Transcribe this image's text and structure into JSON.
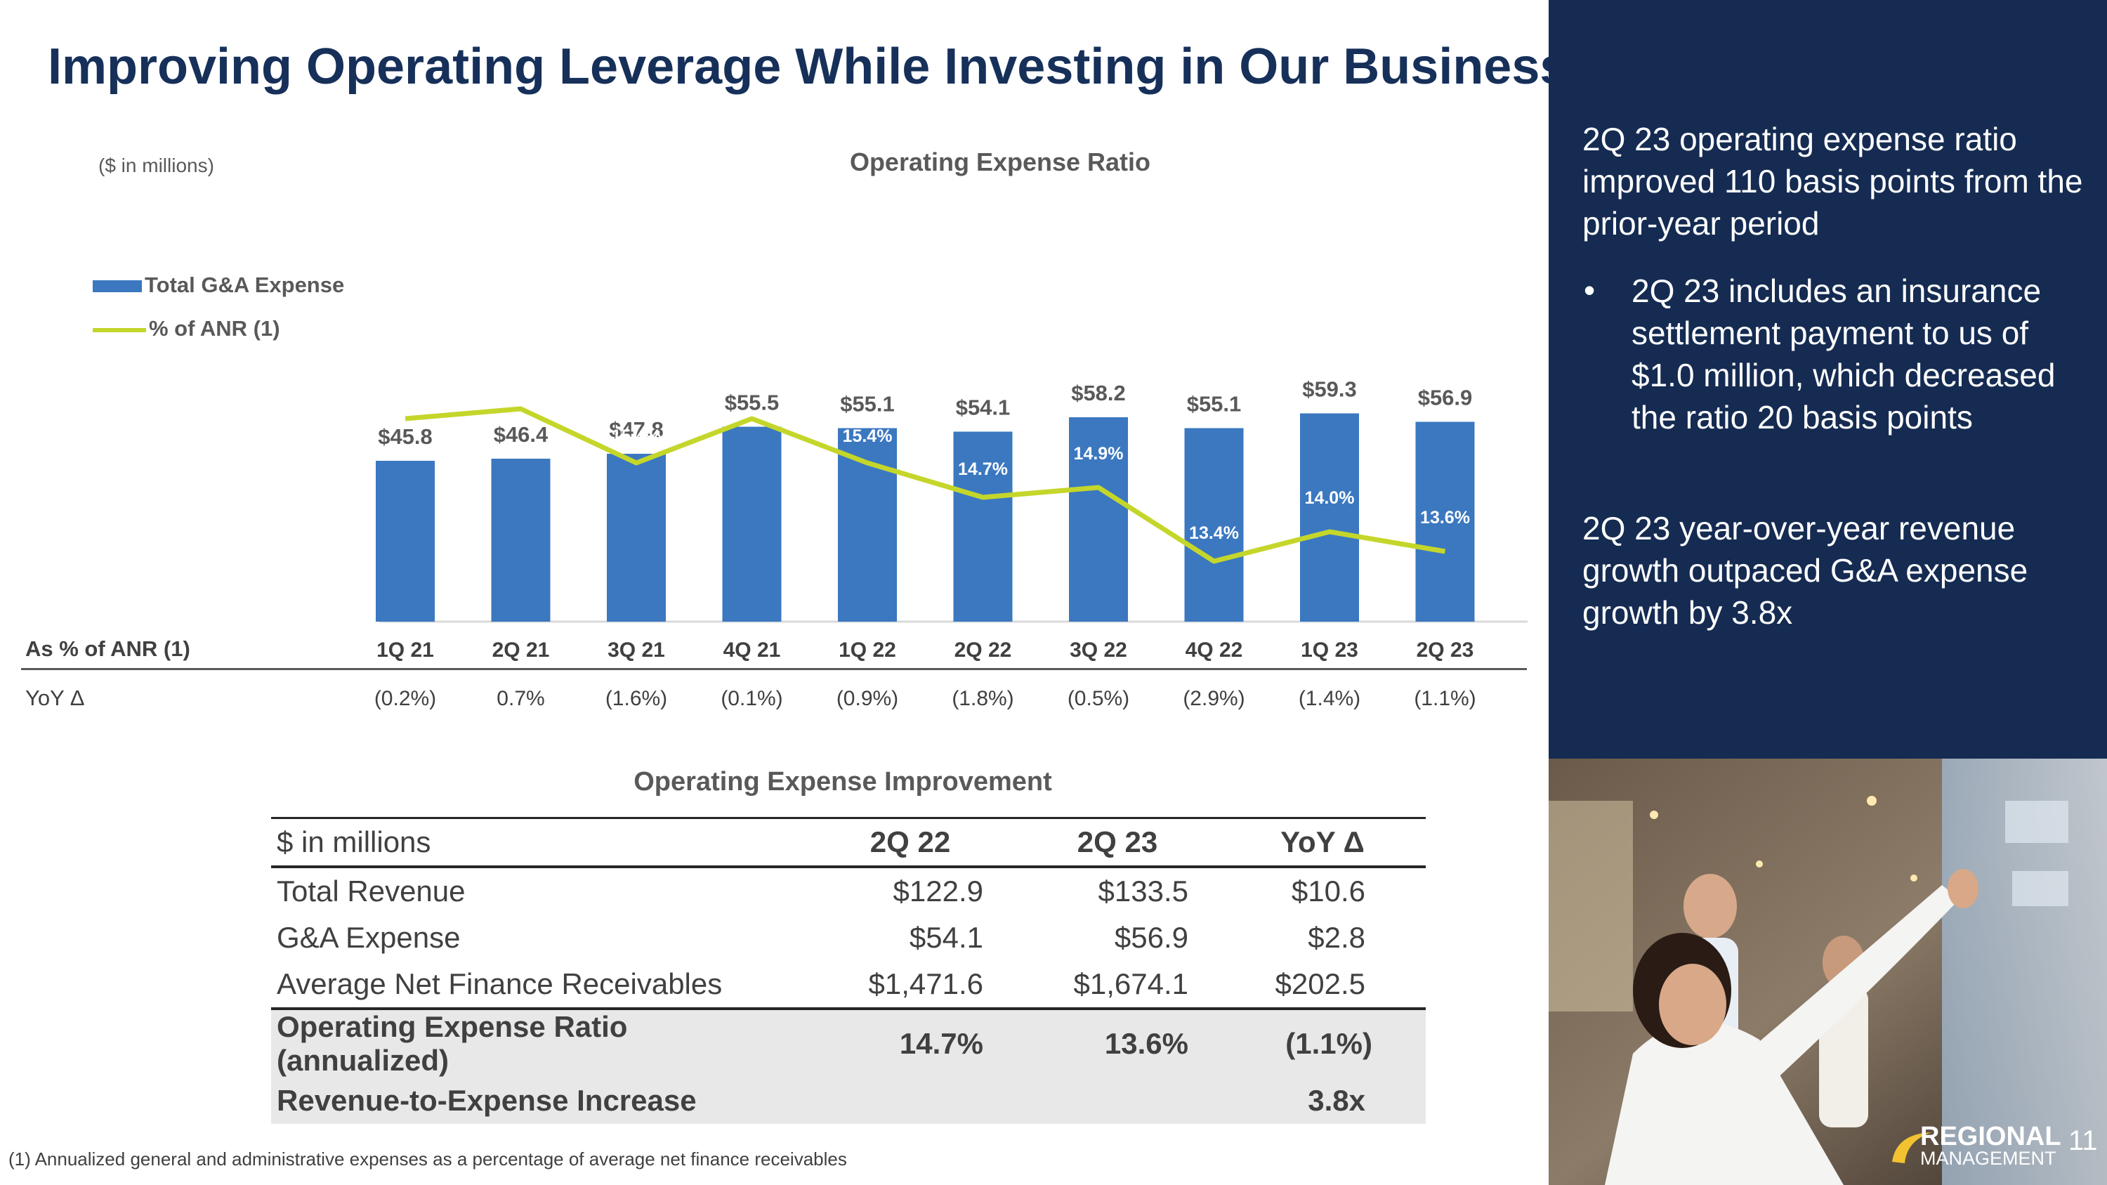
{
  "title": "Improving Operating Leverage While Investing in Our Business",
  "units_note": "($ in millions)",
  "legend": {
    "bar_label": "Total G&A Expense",
    "line_label": "% of ANR (1)"
  },
  "chart_data": {
    "type": "bar",
    "title": "Operating Expense Ratio",
    "categories": [
      "1Q 21",
      "2Q 21",
      "3Q 21",
      "4Q 21",
      "1Q 22",
      "2Q 22",
      "3Q 22",
      "4Q 22",
      "1Q 23",
      "2Q 23"
    ],
    "series": [
      {
        "name": "Total G&A Expense",
        "type": "bar",
        "values": [
          45.8,
          46.4,
          47.8,
          55.5,
          55.1,
          54.1,
          58.2,
          55.1,
          59.3,
          56.9
        ],
        "labels": [
          "$45.8",
          "$46.4",
          "$47.8",
          "$55.5",
          "$55.1",
          "$54.1",
          "$58.2",
          "$55.1",
          "$59.3",
          "$56.9"
        ],
        "color": "#3b78c0"
      },
      {
        "name": "% of ANR (1)",
        "type": "line",
        "values": [
          16.3,
          16.5,
          15.4,
          16.3,
          15.4,
          14.7,
          14.9,
          13.4,
          14.0,
          13.6
        ],
        "labels": [
          "16.3%",
          "16.5%",
          "15.4%",
          "16.3%",
          "15.4%",
          "14.7%",
          "14.9%",
          "13.4%",
          "14.0%",
          "13.6%"
        ],
        "color": "#c4d62a"
      }
    ],
    "bar_axis_range": [
      0,
      60
    ],
    "line_axis_range": [
      8,
      20
    ],
    "gridlines": false,
    "legend_position": "left"
  },
  "ratio_row": {
    "label": "As % of ANR (1)",
    "yoy_label": "YoY Δ",
    "yoy_values": [
      "(0.2%)",
      "0.7%",
      "(1.6%)",
      "(0.1%)",
      "(0.9%)",
      "(1.8%)",
      "(0.5%)",
      "(2.9%)",
      "(1.4%)",
      "(1.1%)"
    ]
  },
  "table": {
    "title": "Operating Expense Improvement",
    "headers": [
      "$ in millions",
      "2Q 22",
      "2Q 23",
      "YoY Δ"
    ],
    "rows": [
      [
        "Total Revenue",
        "$122.9",
        "$133.5",
        "$10.6"
      ],
      [
        "G&A Expense",
        "$54.1",
        "$56.9",
        "$2.8"
      ],
      [
        "Average Net Finance Receivables",
        "$1,471.6",
        "$1,674.1",
        "$202.5"
      ]
    ],
    "summary_rows": [
      [
        "Operating Expense Ratio (annualized)",
        "14.7%",
        "13.6%",
        "(1.1%)"
      ],
      [
        "Revenue-to-Expense Increase",
        "",
        "",
        "3.8x"
      ]
    ]
  },
  "sidebar": {
    "point1": "2Q 23 operating expense ratio improved 110 basis points from the prior-year period",
    "bullet": "2Q 23 includes an insurance settlement payment to us of $1.0 million, which decreased the ratio 20 basis points",
    "point2": "2Q 23 year-over-year revenue growth outpaced G&A expense growth by 3.8x",
    "bullet_char": "•"
  },
  "footnote": "(1) Annualized general and administrative expenses as a percentage of average net finance receivables",
  "logo": {
    "line1": "REGIONAL",
    "line2": "MANAGEMENT"
  },
  "page_number": "11",
  "colors": {
    "navy": "#152b52",
    "bar": "#3b78c0",
    "line": "#c4d62a"
  }
}
